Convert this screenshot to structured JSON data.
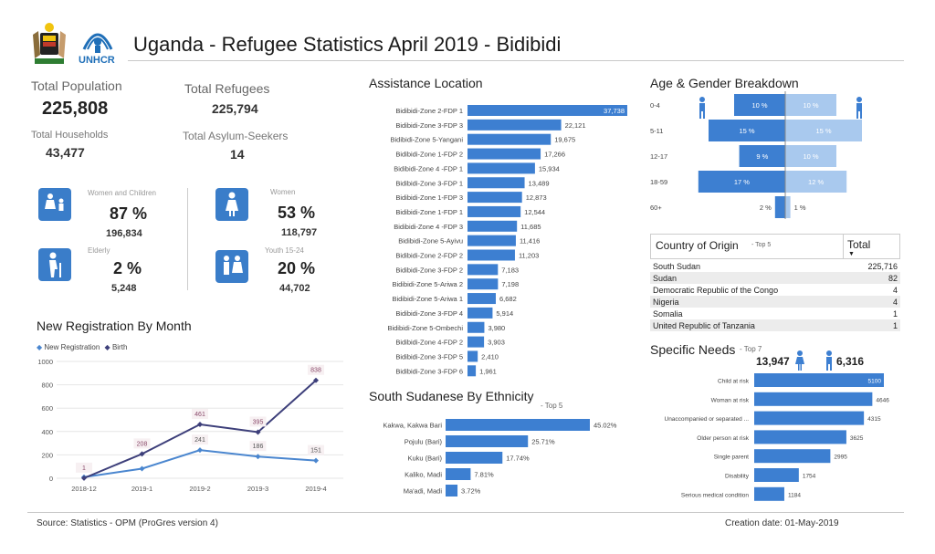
{
  "header": {
    "title": "Uganda  - Refugee Statistics April 2019 - Bidibidi",
    "logo_text": "UNHCR"
  },
  "summary": {
    "total_population_label": "Total Population",
    "total_population": "225,808",
    "total_refugees_label": "Total Refugees",
    "total_refugees": "225,794",
    "total_households_label": "Total Households",
    "total_households": "43,477",
    "total_asylum_label": "Total Asylum-Seekers",
    "total_asylum": "14"
  },
  "demographics": {
    "women_children": {
      "label": "Women and Children",
      "pct": "87 %",
      "count": "196,834"
    },
    "women": {
      "label": "Women",
      "pct": "53 %",
      "count": "118,797"
    },
    "elderly": {
      "label": "Elderly",
      "pct": "2 %",
      "count": "5,248"
    },
    "youth": {
      "label": "Youth 15-24",
      "pct": "20 %",
      "count": "44,702"
    }
  },
  "registration": {
    "title": "New Registration By Month",
    "legend_new": "New Registration",
    "legend_birth": "Birth",
    "colors": {
      "new": "#4a86cf",
      "birth": "#3d3f7a"
    },
    "chart_data": {
      "type": "line",
      "categories": [
        "2018-12",
        "2019-1",
        "2019-2",
        "2019-3",
        "2019-4"
      ],
      "series": [
        {
          "name": "New Registration",
          "values": [
            10,
            82,
            241,
            186,
            151
          ]
        },
        {
          "name": "Birth",
          "values": [
            1,
            208,
            461,
            395,
            838
          ]
        }
      ],
      "data_labels": {
        "new": [
          "",
          "",
          "241",
          "186",
          "151"
        ],
        "birth": [
          "1",
          "208",
          "461",
          "395",
          "838"
        ]
      },
      "ylim": [
        0,
        1000
      ],
      "yticks": [
        "0",
        "200",
        "400",
        "600",
        "800",
        "1000"
      ]
    }
  },
  "assistance": {
    "title": "Assistance Location",
    "color": "#3d7fd1",
    "chart_data": {
      "type": "bar",
      "categories": [
        "Bidibidi-Zone 2-FDP 1",
        "Bidibidi-Zone 3-FDP 3",
        "Bidibidi-Zone 5-Yangani",
        "Bidibidi-Zone 1-FDP 2",
        "Bidibidi-Zone 4 -FDP 1",
        "Bidibidi-Zone 3-FDP 1",
        "Bidibidi-Zone 1-FDP 3",
        "Bidibidi-Zone 1-FDP 1",
        "Bidibidi-Zone 4 -FDP 3",
        "Bidibidi-Zone 5-Ayivu",
        "Bidibidi-Zone 2-FDP 2",
        "Bidibidi-Zone 3-FDP 2",
        "Bidibidi-Zone 5-Ariwa 2",
        "Bidibidi-Zone 5-Ariwa 1",
        "Bidibidi-Zone 3-FDP 4",
        "Bidibidi-Zone 5-Ombechi",
        "Bidibidi-Zone 4-FDP 2",
        "Bidibidi-Zone 3-FDP 5",
        "Bidibidi-Zone 3-FDP 6"
      ],
      "values": [
        37738,
        22121,
        19675,
        17266,
        15934,
        13489,
        12873,
        12544,
        11685,
        11416,
        11203,
        7183,
        7198,
        6682,
        5914,
        3980,
        3903,
        2410,
        1961
      ],
      "labels": [
        "37,738",
        "22,121",
        "19,675",
        "17,266",
        "15,934",
        "13,489",
        "12,873",
        "12,544",
        "11,685",
        "11,416",
        "11,203",
        "7,183",
        "7,198",
        "6,682",
        "5,914",
        "3,980",
        "3,903",
        "2,410",
        "1,961"
      ]
    }
  },
  "ethnicity": {
    "title": "South Sudanese By Ethnicity",
    "note": "- Top 5",
    "chart_data": {
      "type": "bar",
      "categories": [
        "Kakwa, Kakwa Bari",
        "Pojulu (Bari)",
        "Kuku (Bari)",
        "Kaliko, Madi",
        "Ma'adi, Madi"
      ],
      "values": [
        45.02,
        25.71,
        17.74,
        7.81,
        3.72
      ],
      "labels": [
        "45.02%",
        "25.71%",
        "17.74%",
        "7.81%",
        "3.72%"
      ]
    }
  },
  "age_gender": {
    "title": "Age & Gender Breakdown",
    "colors": {
      "male": "#3d7fd1",
      "female": "#a9c9ee"
    },
    "chart_data": {
      "type": "bar",
      "categories": [
        "0-4",
        "5-11",
        "12-17",
        "18-59",
        "60+"
      ],
      "series": [
        {
          "name": "Male",
          "values": [
            10,
            15,
            9,
            17,
            2
          ]
        },
        {
          "name": "Female",
          "values": [
            10,
            15,
            10,
            12,
            1
          ]
        }
      ],
      "male_labels": [
        "10 %",
        "15 %",
        "9 %",
        "17 %",
        "2 %"
      ],
      "female_labels": [
        "10 %",
        "15 %",
        "10 %",
        "12 %",
        "1 %"
      ]
    }
  },
  "origin": {
    "title": "Country of Origin",
    "note": "- Top 5",
    "total_label": "Total",
    "rows": [
      {
        "country": "South Sudan",
        "total": "225,716"
      },
      {
        "country": "Sudan",
        "total": "82"
      },
      {
        "country": "Democratic Republic of the Congo",
        "total": "4"
      },
      {
        "country": "Nigeria",
        "total": "4"
      },
      {
        "country": "Somalia",
        "total": "1"
      },
      {
        "country": "United Republic of Tanzania",
        "total": "1"
      }
    ]
  },
  "needs": {
    "title": "Specific Needs",
    "note": "- Top 7",
    "female_total": "13,947",
    "male_total": "6,316",
    "chart_data": {
      "type": "bar",
      "categories": [
        "Child at risk",
        "Woman at risk",
        "Unaccompanied or separated ...",
        "Older person at risk",
        "Single parent",
        "Disability",
        "Serious medical condition"
      ],
      "values": [
        5100,
        4646,
        4315,
        3625,
        2995,
        1754,
        1184
      ],
      "labels": [
        "5100",
        "4646",
        "4315",
        "3625",
        "2995",
        "1754",
        "1184"
      ]
    }
  },
  "footer": {
    "source": "Source: Statistics - OPM (ProGres version 4)",
    "creation": "Creation date: 01-May-2019"
  }
}
